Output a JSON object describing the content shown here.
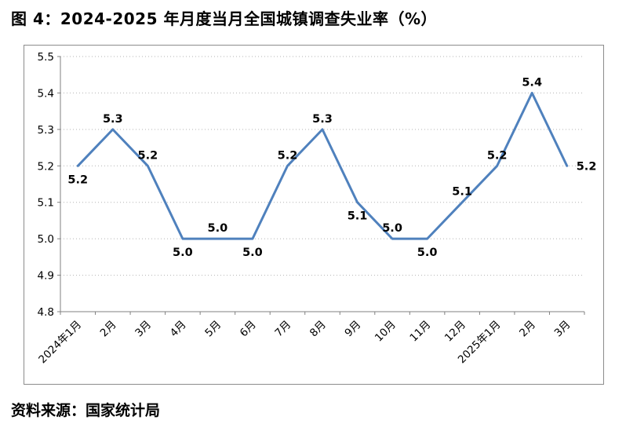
{
  "title": "图 4：2024-2025 年月度当月全国城镇调查失业率（%）",
  "source": "资料来源：国家统计局",
  "chart_data": {
    "type": "line",
    "title": "图 4：2024-2025 年月度当月全国城镇调查失业率（%）",
    "categories": [
      "2024年1月",
      "2月",
      "3月",
      "4月",
      "5月",
      "6月",
      "7月",
      "8月",
      "9月",
      "10月",
      "11月",
      "12月",
      "2025年1月",
      "2月",
      "3月"
    ],
    "values": [
      5.2,
      5.3,
      5.2,
      5.0,
      5.0,
      5.0,
      5.2,
      5.3,
      5.1,
      5.0,
      5.0,
      5.1,
      5.2,
      5.4,
      5.2
    ],
    "xlabel": "",
    "ylabel": "",
    "ylim": [
      4.8,
      5.5
    ],
    "ytick_step": 0.1,
    "grid": true,
    "legend": "none",
    "line_color": "#4F81BD",
    "axis_color": "#808080",
    "grid_color": "#b3b3b3",
    "label_positions": [
      "below",
      "above",
      "above",
      "below",
      "above",
      "below",
      "above",
      "above",
      "below",
      "above",
      "below",
      "above",
      "above",
      "above",
      "right"
    ]
  }
}
